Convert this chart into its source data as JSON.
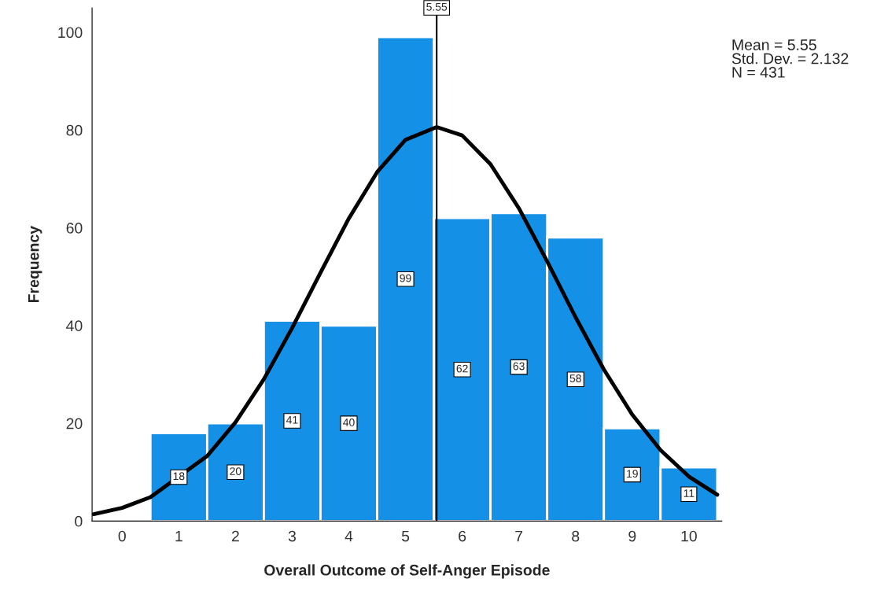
{
  "chart_data": {
    "type": "histogram",
    "xlabel": "Overall Outcome of Self-Anger Episode",
    "ylabel": "Frequency",
    "bins": [
      0.5,
      1.5,
      2.5,
      3.5,
      4.5,
      5.5,
      6.5,
      7.5,
      8.5,
      9.5,
      10.5
    ],
    "series": [
      {
        "color": "#1490e6",
        "values": [
          18,
          20,
          41,
          40,
          99,
          62,
          63,
          58,
          19,
          11
        ],
        "value_labels": [
          "18",
          "20",
          "41",
          "40",
          "99",
          "62",
          "63",
          "58",
          "19",
          "11"
        ]
      },
      {
        "type": "line",
        "color": "#000000",
        "x": [
          -0.5,
          0,
          0.5,
          1.5,
          2,
          2.5,
          3,
          3.5,
          4,
          4.5,
          5,
          5.55,
          6,
          6.5,
          7,
          7.5,
          8,
          8.5,
          9,
          9.5,
          10,
          10.5
        ],
        "values": [
          1.4,
          2.7,
          4.9,
          13.3,
          20.2,
          29.0,
          39.5,
          50.8,
          61.9,
          71.4,
          78.0,
          80.6,
          78.9,
          73.0,
          64.0,
          53.1,
          41.7,
          31.0,
          21.8,
          14.5,
          9.1,
          5.4
        ]
      }
    ],
    "ref_lines": [
      {
        "axis": "x",
        "value": 5.55,
        "label": "5.55",
        "color": "#000000"
      }
    ],
    "annotations": [
      "Mean = 5.55",
      "Std. Dev. = 2.132",
      "N = 431"
    ],
    "xlim": [
      -0.53,
      10.58
    ],
    "xticks": [
      0,
      1,
      2,
      3,
      4,
      5,
      6,
      7,
      8,
      9,
      10
    ],
    "ylim": [
      0,
      105
    ],
    "yticks": [
      0,
      20,
      40,
      60,
      80,
      100
    ],
    "grid": false,
    "legend": false,
    "marker": "none",
    "line_style": "solid"
  }
}
